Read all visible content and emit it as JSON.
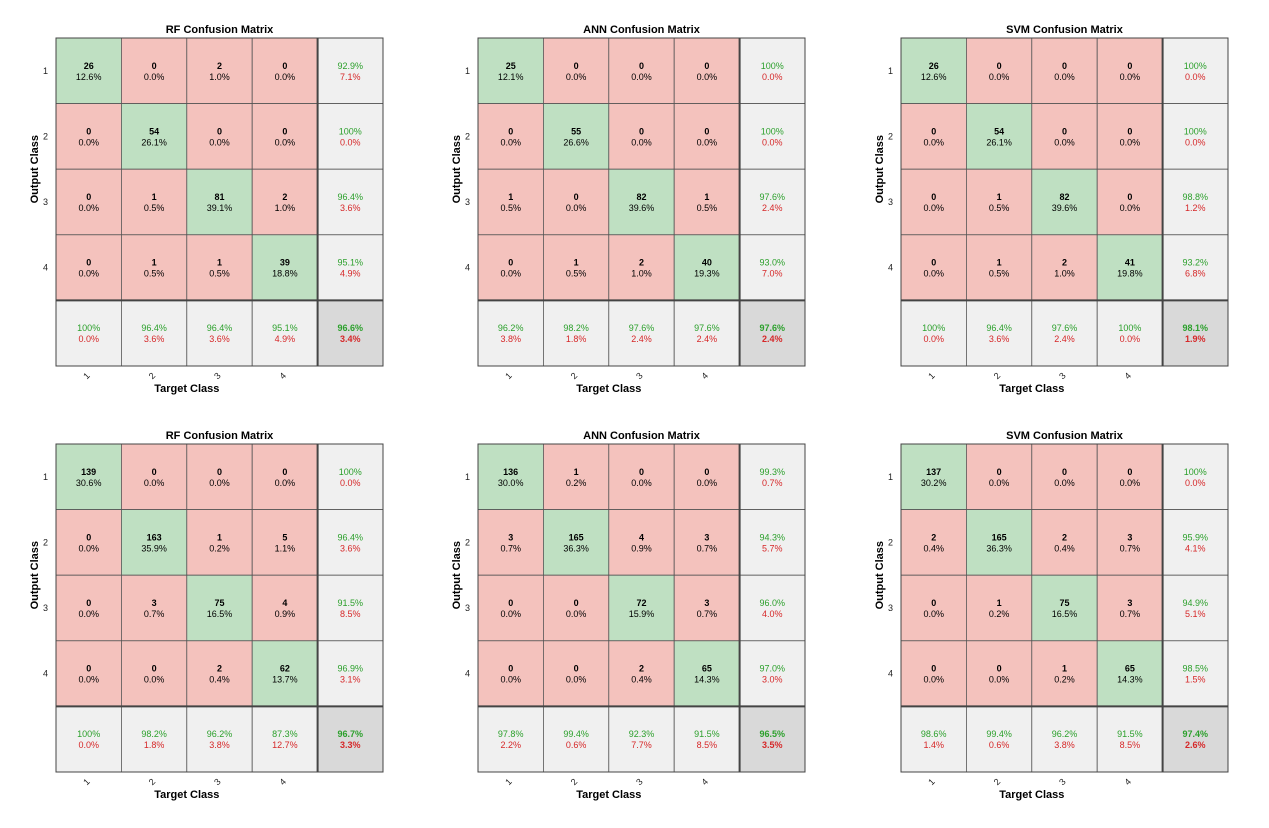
{
  "chart_data": [
    {
      "type": "heatmap",
      "title": "RF Confusion Matrix",
      "xlabel": "Target Class",
      "ylabel": "Output Class",
      "classes": [
        "1",
        "2",
        "3",
        "4"
      ],
      "counts": [
        [
          26,
          0,
          2,
          0
        ],
        [
          0,
          54,
          0,
          0
        ],
        [
          0,
          1,
          81,
          2
        ],
        [
          0,
          1,
          1,
          39
        ]
      ],
      "cell_pct": [
        [
          "12.6%",
          "0.0%",
          "1.0%",
          "0.0%"
        ],
        [
          "0.0%",
          "26.1%",
          "0.0%",
          "0.0%"
        ],
        [
          "0.0%",
          "0.5%",
          "39.1%",
          "1.0%"
        ],
        [
          "0.0%",
          "0.5%",
          "0.5%",
          "18.8%"
        ]
      ],
      "row_correct": [
        "92.9%",
        "100%",
        "96.4%",
        "95.1%"
      ],
      "row_error": [
        "7.1%",
        "0.0%",
        "3.6%",
        "4.9%"
      ],
      "col_correct": [
        "100%",
        "96.4%",
        "96.4%",
        "95.1%"
      ],
      "col_error": [
        "0.0%",
        "3.6%",
        "3.6%",
        "4.9%"
      ],
      "overall_correct": "96.6%",
      "overall_error": "3.4%"
    },
    {
      "type": "heatmap",
      "title": "ANN Confusion Matrix",
      "xlabel": "Target Class",
      "ylabel": "Output Class",
      "classes": [
        "1",
        "2",
        "3",
        "4"
      ],
      "counts": [
        [
          25,
          0,
          0,
          0
        ],
        [
          0,
          55,
          0,
          0
        ],
        [
          1,
          0,
          82,
          1
        ],
        [
          0,
          1,
          2,
          40
        ]
      ],
      "cell_pct": [
        [
          "12.1%",
          "0.0%",
          "0.0%",
          "0.0%"
        ],
        [
          "0.0%",
          "26.6%",
          "0.0%",
          "0.0%"
        ],
        [
          "0.5%",
          "0.0%",
          "39.6%",
          "0.5%"
        ],
        [
          "0.0%",
          "0.5%",
          "1.0%",
          "19.3%"
        ]
      ],
      "row_correct": [
        "100%",
        "100%",
        "97.6%",
        "93.0%"
      ],
      "row_error": [
        "0.0%",
        "0.0%",
        "2.4%",
        "7.0%"
      ],
      "col_correct": [
        "96.2%",
        "98.2%",
        "97.6%",
        "97.6%"
      ],
      "col_error": [
        "3.8%",
        "1.8%",
        "2.4%",
        "2.4%"
      ],
      "overall_correct": "97.6%",
      "overall_error": "2.4%"
    },
    {
      "type": "heatmap",
      "title": "SVM Confusion Matrix",
      "xlabel": "Target Class",
      "ylabel": "Output Class",
      "classes": [
        "1",
        "2",
        "3",
        "4"
      ],
      "counts": [
        [
          26,
          0,
          0,
          0
        ],
        [
          0,
          54,
          0,
          0
        ],
        [
          0,
          1,
          82,
          0
        ],
        [
          0,
          1,
          2,
          41
        ]
      ],
      "cell_pct": [
        [
          "12.6%",
          "0.0%",
          "0.0%",
          "0.0%"
        ],
        [
          "0.0%",
          "26.1%",
          "0.0%",
          "0.0%"
        ],
        [
          "0.0%",
          "0.5%",
          "39.6%",
          "0.0%"
        ],
        [
          "0.0%",
          "0.5%",
          "1.0%",
          "19.8%"
        ]
      ],
      "row_correct": [
        "100%",
        "100%",
        "98.8%",
        "93.2%"
      ],
      "row_error": [
        "0.0%",
        "0.0%",
        "1.2%",
        "6.8%"
      ],
      "col_correct": [
        "100%",
        "96.4%",
        "97.6%",
        "100%"
      ],
      "col_error": [
        "0.0%",
        "3.6%",
        "2.4%",
        "0.0%"
      ],
      "overall_correct": "98.1%",
      "overall_error": "1.9%"
    },
    {
      "type": "heatmap",
      "title": "RF Confusion Matrix",
      "xlabel": "Target Class",
      "ylabel": "Output Class",
      "classes": [
        "1",
        "2",
        "3",
        "4"
      ],
      "counts": [
        [
          139,
          0,
          0,
          0
        ],
        [
          0,
          163,
          1,
          5
        ],
        [
          0,
          3,
          75,
          4
        ],
        [
          0,
          0,
          2,
          62
        ]
      ],
      "cell_pct": [
        [
          "30.6%",
          "0.0%",
          "0.0%",
          "0.0%"
        ],
        [
          "0.0%",
          "35.9%",
          "0.2%",
          "1.1%"
        ],
        [
          "0.0%",
          "0.7%",
          "16.5%",
          "0.9%"
        ],
        [
          "0.0%",
          "0.0%",
          "0.4%",
          "13.7%"
        ]
      ],
      "row_correct": [
        "100%",
        "96.4%",
        "91.5%",
        "96.9%"
      ],
      "row_error": [
        "0.0%",
        "3.6%",
        "8.5%",
        "3.1%"
      ],
      "col_correct": [
        "100%",
        "98.2%",
        "96.2%",
        "87.3%"
      ],
      "col_error": [
        "0.0%",
        "1.8%",
        "3.8%",
        "12.7%"
      ],
      "overall_correct": "96.7%",
      "overall_error": "3.3%"
    },
    {
      "type": "heatmap",
      "title": "ANN Confusion Matrix",
      "xlabel": "Target Class",
      "ylabel": "Output Class",
      "classes": [
        "1",
        "2",
        "3",
        "4"
      ],
      "counts": [
        [
          136,
          1,
          0,
          0
        ],
        [
          3,
          165,
          4,
          3
        ],
        [
          0,
          0,
          72,
          3
        ],
        [
          0,
          0,
          2,
          65
        ]
      ],
      "cell_pct": [
        [
          "30.0%",
          "0.2%",
          "0.0%",
          "0.0%"
        ],
        [
          "0.7%",
          "36.3%",
          "0.9%",
          "0.7%"
        ],
        [
          "0.0%",
          "0.0%",
          "15.9%",
          "0.7%"
        ],
        [
          "0.0%",
          "0.0%",
          "0.4%",
          "14.3%"
        ]
      ],
      "row_correct": [
        "99.3%",
        "94.3%",
        "96.0%",
        "97.0%"
      ],
      "row_error": [
        "0.7%",
        "5.7%",
        "4.0%",
        "3.0%"
      ],
      "col_correct": [
        "97.8%",
        "99.4%",
        "92.3%",
        "91.5%"
      ],
      "col_error": [
        "2.2%",
        "0.6%",
        "7.7%",
        "8.5%"
      ],
      "overall_correct": "96.5%",
      "overall_error": "3.5%"
    },
    {
      "type": "heatmap",
      "title": "SVM Confusion Matrix",
      "xlabel": "Target Class",
      "ylabel": "Output Class",
      "classes": [
        "1",
        "2",
        "3",
        "4"
      ],
      "counts": [
        [
          137,
          0,
          0,
          0
        ],
        [
          2,
          165,
          2,
          3
        ],
        [
          0,
          1,
          75,
          3
        ],
        [
          0,
          0,
          1,
          65
        ]
      ],
      "cell_pct": [
        [
          "30.2%",
          "0.0%",
          "0.0%",
          "0.0%"
        ],
        [
          "0.4%",
          "36.3%",
          "0.4%",
          "0.7%"
        ],
        [
          "0.0%",
          "0.2%",
          "16.5%",
          "0.7%"
        ],
        [
          "0.0%",
          "0.0%",
          "0.2%",
          "14.3%"
        ]
      ],
      "row_correct": [
        "100%",
        "95.9%",
        "94.9%",
        "98.5%"
      ],
      "row_error": [
        "0.0%",
        "4.1%",
        "5.1%",
        "1.5%"
      ],
      "col_correct": [
        "98.6%",
        "99.4%",
        "96.2%",
        "91.5%"
      ],
      "col_error": [
        "1.4%",
        "0.6%",
        "3.8%",
        "8.5%"
      ],
      "overall_correct": "97.4%",
      "overall_error": "2.6%"
    }
  ],
  "colors": {
    "diag": "#bfe0c2",
    "offdiag": "#f4c2bd",
    "summary": "#f0f0f0",
    "overall": "#d9d9d9",
    "correct_text": "#2ca02c",
    "error_text": "#d62728"
  }
}
